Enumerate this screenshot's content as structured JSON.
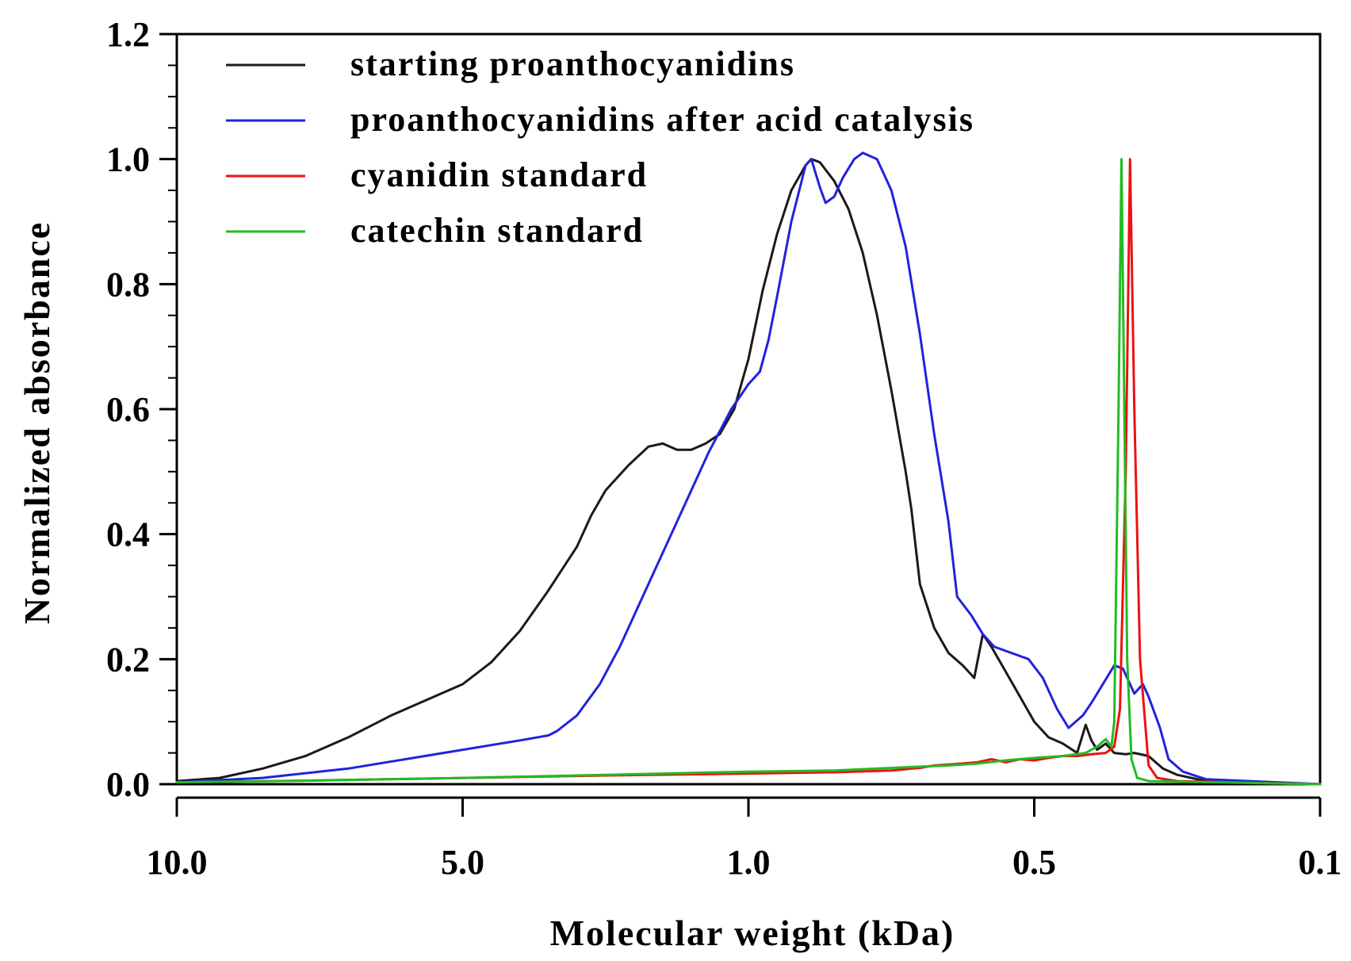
{
  "chart_data": {
    "type": "line",
    "title": "",
    "xlabel": "Molecular weight (kDa)",
    "ylabel": "Normalized absorbance",
    "x_scale": "position-index",
    "x_ticks": [
      {
        "pos": 0,
        "label": "10.0"
      },
      {
        "pos": 1,
        "label": "5.0"
      },
      {
        "pos": 2,
        "label": "1.0"
      },
      {
        "pos": 3,
        "label": "0.5"
      },
      {
        "pos": 4,
        "label": "0.1"
      }
    ],
    "xlim": [
      0,
      4
    ],
    "ylim": [
      0,
      1.2
    ],
    "y_ticks": [
      "0.0",
      "0.2",
      "0.4",
      "0.6",
      "0.8",
      "1.0",
      "1.2"
    ],
    "y_tick_values": [
      0,
      0.2,
      0.4,
      0.6,
      0.8,
      1.0,
      1.2
    ],
    "legend_position": "top-left",
    "series": [
      {
        "name": "starting proanthocyanidins",
        "color": "#1a1a1a",
        "points": [
          [
            0,
            0.005
          ],
          [
            0.15,
            0.01
          ],
          [
            0.3,
            0.025
          ],
          [
            0.45,
            0.045
          ],
          [
            0.6,
            0.075
          ],
          [
            0.75,
            0.11
          ],
          [
            0.9,
            0.14
          ],
          [
            1.0,
            0.16
          ],
          [
            1.1,
            0.195
          ],
          [
            1.2,
            0.245
          ],
          [
            1.3,
            0.31
          ],
          [
            1.4,
            0.38
          ],
          [
            1.45,
            0.43
          ],
          [
            1.5,
            0.47
          ],
          [
            1.58,
            0.51
          ],
          [
            1.65,
            0.54
          ],
          [
            1.7,
            0.545
          ],
          [
            1.75,
            0.535
          ],
          [
            1.8,
            0.535
          ],
          [
            1.85,
            0.545
          ],
          [
            1.9,
            0.56
          ],
          [
            1.95,
            0.6
          ],
          [
            2.0,
            0.68
          ],
          [
            2.05,
            0.79
          ],
          [
            2.1,
            0.88
          ],
          [
            2.15,
            0.95
          ],
          [
            2.2,
            0.99
          ],
          [
            2.22,
            1.0
          ],
          [
            2.25,
            0.995
          ],
          [
            2.3,
            0.965
          ],
          [
            2.35,
            0.92
          ],
          [
            2.4,
            0.85
          ],
          [
            2.45,
            0.75
          ],
          [
            2.5,
            0.63
          ],
          [
            2.55,
            0.5
          ],
          [
            2.57,
            0.44
          ],
          [
            2.6,
            0.32
          ],
          [
            2.65,
            0.25
          ],
          [
            2.7,
            0.21
          ],
          [
            2.75,
            0.19
          ],
          [
            2.79,
            0.17
          ],
          [
            2.82,
            0.24
          ],
          [
            2.85,
            0.22
          ],
          [
            2.9,
            0.18
          ],
          [
            2.95,
            0.14
          ],
          [
            3.0,
            0.1
          ],
          [
            3.05,
            0.075
          ],
          [
            3.1,
            0.065
          ],
          [
            3.15,
            0.05
          ],
          [
            3.18,
            0.095
          ],
          [
            3.2,
            0.07
          ],
          [
            3.22,
            0.055
          ],
          [
            3.25,
            0.065
          ],
          [
            3.28,
            0.05
          ],
          [
            3.32,
            0.048
          ],
          [
            3.35,
            0.05
          ],
          [
            3.4,
            0.045
          ],
          [
            3.45,
            0.025
          ],
          [
            3.5,
            0.015
          ],
          [
            3.6,
            0.005
          ],
          [
            4.0,
            0.0
          ]
        ]
      },
      {
        "name": "proanthocyanidins after acid catalysis",
        "color": "#2222dd",
        "points": [
          [
            0,
            0.003
          ],
          [
            0.3,
            0.01
          ],
          [
            0.6,
            0.025
          ],
          [
            0.8,
            0.04
          ],
          [
            1.0,
            0.055
          ],
          [
            1.2,
            0.07
          ],
          [
            1.3,
            0.078
          ],
          [
            1.33,
            0.085
          ],
          [
            1.4,
            0.11
          ],
          [
            1.48,
            0.16
          ],
          [
            1.55,
            0.22
          ],
          [
            1.62,
            0.29
          ],
          [
            1.7,
            0.37
          ],
          [
            1.78,
            0.45
          ],
          [
            1.86,
            0.53
          ],
          [
            1.94,
            0.6
          ],
          [
            2.0,
            0.64
          ],
          [
            2.04,
            0.66
          ],
          [
            2.07,
            0.71
          ],
          [
            2.1,
            0.78
          ],
          [
            2.15,
            0.9
          ],
          [
            2.2,
            0.99
          ],
          [
            2.22,
            1.0
          ],
          [
            2.25,
            0.955
          ],
          [
            2.27,
            0.93
          ],
          [
            2.3,
            0.94
          ],
          [
            2.33,
            0.97
          ],
          [
            2.37,
            1.0
          ],
          [
            2.4,
            1.01
          ],
          [
            2.45,
            1.0
          ],
          [
            2.5,
            0.95
          ],
          [
            2.55,
            0.86
          ],
          [
            2.6,
            0.72
          ],
          [
            2.65,
            0.56
          ],
          [
            2.7,
            0.42
          ],
          [
            2.73,
            0.3
          ],
          [
            2.78,
            0.27
          ],
          [
            2.82,
            0.24
          ],
          [
            2.86,
            0.22
          ],
          [
            2.92,
            0.21
          ],
          [
            2.98,
            0.2
          ],
          [
            3.03,
            0.17
          ],
          [
            3.08,
            0.12
          ],
          [
            3.12,
            0.09
          ],
          [
            3.17,
            0.11
          ],
          [
            3.2,
            0.13
          ],
          [
            3.24,
            0.16
          ],
          [
            3.28,
            0.19
          ],
          [
            3.31,
            0.185
          ],
          [
            3.33,
            0.165
          ],
          [
            3.35,
            0.145
          ],
          [
            3.38,
            0.16
          ],
          [
            3.4,
            0.14
          ],
          [
            3.44,
            0.09
          ],
          [
            3.47,
            0.04
          ],
          [
            3.52,
            0.02
          ],
          [
            3.6,
            0.008
          ],
          [
            4.0,
            0.0
          ]
        ]
      },
      {
        "name": "cyanidin standard",
        "color": "#ee1111",
        "points": [
          [
            0,
            0.003
          ],
          [
            0.5,
            0.006
          ],
          [
            1.0,
            0.01
          ],
          [
            1.5,
            0.014
          ],
          [
            2.0,
            0.017
          ],
          [
            2.3,
            0.019
          ],
          [
            2.5,
            0.022
          ],
          [
            2.6,
            0.026
          ],
          [
            2.65,
            0.03
          ],
          [
            2.72,
            0.032
          ],
          [
            2.8,
            0.035
          ],
          [
            2.85,
            0.04
          ],
          [
            2.9,
            0.035
          ],
          [
            2.95,
            0.04
          ],
          [
            3.0,
            0.038
          ],
          [
            3.05,
            0.042
          ],
          [
            3.1,
            0.045
          ],
          [
            3.15,
            0.045
          ],
          [
            3.2,
            0.048
          ],
          [
            3.25,
            0.05
          ],
          [
            3.28,
            0.06
          ],
          [
            3.3,
            0.12
          ],
          [
            3.32,
            0.5
          ],
          [
            3.335,
            1.0
          ],
          [
            3.35,
            0.6
          ],
          [
            3.37,
            0.2
          ],
          [
            3.4,
            0.03
          ],
          [
            3.43,
            0.01
          ],
          [
            3.5,
            0.005
          ],
          [
            4.0,
            0.0
          ]
        ]
      },
      {
        "name": "catechin standard",
        "color": "#22bb22",
        "points": [
          [
            0,
            0.003
          ],
          [
            0.5,
            0.006
          ],
          [
            1.0,
            0.01
          ],
          [
            1.5,
            0.015
          ],
          [
            2.0,
            0.02
          ],
          [
            2.3,
            0.022
          ],
          [
            2.5,
            0.026
          ],
          [
            2.6,
            0.028
          ],
          [
            2.7,
            0.03
          ],
          [
            2.8,
            0.033
          ],
          [
            2.9,
            0.038
          ],
          [
            3.0,
            0.042
          ],
          [
            3.1,
            0.045
          ],
          [
            3.18,
            0.05
          ],
          [
            3.22,
            0.06
          ],
          [
            3.25,
            0.072
          ],
          [
            3.27,
            0.06
          ],
          [
            3.28,
            0.1
          ],
          [
            3.295,
            0.6
          ],
          [
            3.305,
            1.0
          ],
          [
            3.315,
            0.6
          ],
          [
            3.325,
            0.2
          ],
          [
            3.34,
            0.04
          ],
          [
            3.36,
            0.01
          ],
          [
            3.4,
            0.005
          ],
          [
            4.0,
            0.0
          ]
        ]
      }
    ]
  }
}
